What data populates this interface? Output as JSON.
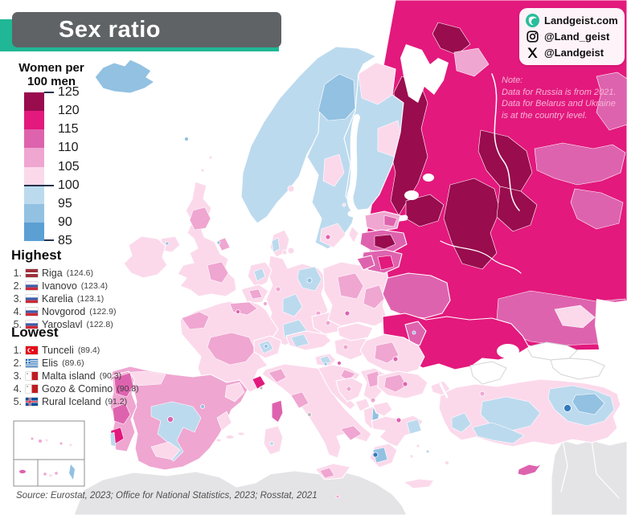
{
  "title": "Sex ratio",
  "legend": {
    "title_line1": "Women per",
    "title_line2": "100 men",
    "labels": [
      "125",
      "120",
      "115",
      "110",
      "105",
      "100",
      "95",
      "90",
      "85"
    ],
    "colors": [
      "#990C4E",
      "#E3197D",
      "#DE63AE",
      "#EFA6D1",
      "#FBD9EB",
      "#BCDAEE",
      "#92C1E2",
      "#5C9FD3"
    ]
  },
  "highest": {
    "heading": "Highest",
    "items": [
      {
        "rank": "1.",
        "flag": "latvia-flag",
        "name": "Riga",
        "value": "(124.6)"
      },
      {
        "rank": "2.",
        "flag": "russia-flag",
        "name": "Ivanovo",
        "value": "(123.4)"
      },
      {
        "rank": "3.",
        "flag": "russia-flag",
        "name": "Karelia",
        "value": "(123.1)"
      },
      {
        "rank": "4.",
        "flag": "russia-flag",
        "name": "Novgorod",
        "value": "(122.9)"
      },
      {
        "rank": "5.",
        "flag": "russia-flag",
        "name": "Yaroslavl",
        "value": "(122.8)"
      }
    ]
  },
  "lowest": {
    "heading": "Lowest",
    "items": [
      {
        "rank": "1.",
        "flag": "turkey-flag",
        "name": "Tunceli",
        "value": "(89.4)"
      },
      {
        "rank": "2.",
        "flag": "greece-flag",
        "name": "Elis",
        "value": "(89.6)"
      },
      {
        "rank": "3.",
        "flag": "malta-flag",
        "name": "Malta island",
        "value": "(90.3)"
      },
      {
        "rank": "4.",
        "flag": "malta-flag",
        "name": "Gozo & Comino",
        "value": "(90.8)"
      },
      {
        "rank": "5.",
        "flag": "iceland-flag",
        "name": "Rural Iceland",
        "value": "(91.2)"
      }
    ]
  },
  "social": {
    "items": [
      {
        "icon": "globe-icon",
        "label": "Landgeist.com"
      },
      {
        "icon": "instagram-icon",
        "label": "@Land_geist"
      },
      {
        "icon": "x-icon",
        "label": "@Landgeist"
      }
    ]
  },
  "note": {
    "lines": [
      "Note:",
      "Data for Russia is from 2021.",
      "Data for Belarus and Ukraine",
      "is at the country level."
    ]
  },
  "source": "Source: Eurostat, 2023; Office for National Statistics, 2023; Rosstat, 2021",
  "theme": {
    "accent_teal": "#1FB795",
    "title_gray": "#5F6366",
    "no_data_gray": "#E4E4E6",
    "marker_gray": "#BDBDBD",
    "deep_blue": "#3579C0",
    "sea": "#FFFFFF",
    "tick_color": "#25324B"
  },
  "map": {
    "region_fills": {
      "north-africa": "nodata",
      "middle-east": "nodata",
      "kazakhstan": "nodata",
      "russia": 1,
      "russia-murmansk": 0,
      "russia-kola-patch": 3,
      "russia-karelia": 0,
      "russia-novgorod": 0,
      "russia-central-a": 0,
      "russia-central-b": 0,
      "russia-central-c": 0,
      "russia-east-a": 2,
      "russia-east-b": 2,
      "russia-northeast": 2,
      "russia-south": 2,
      "russia-south-patch": 4,
      "russia-south-dot": 6,
      "white-sea": "sea",
      "lake-ladoga": "sea",
      "lake-onega": "sea",
      "caspian": "sea",
      "sea-azov": "sea",
      "crimea": "sea",
      "georgia": "sea",
      "azerbaijan": "sea",
      "norway": 5,
      "norway-dot": 4,
      "sweden": 5,
      "scandinavia-north": 6,
      "sweden-mid": 4,
      "sweden-south": 4,
      "sweden-south-dot": 2,
      "gotland": 4,
      "finland": 5,
      "finland-north": 4,
      "finland-mid": 4,
      "aland": 4,
      "denmark": 4,
      "denmark-blue": 5,
      "denmark-isle-a": 4,
      "denmark-isle-b": 4,
      "iceland": 6,
      "faroe": 6,
      "shetland": 4,
      "orkney": 4,
      "britain": 4,
      "scotland-patch": 3,
      "england-patch-a": 3,
      "england-patch-b": 3,
      "england-dot": 6,
      "n-ireland": 4,
      "n-ireland-dot": 6,
      "ireland": 4,
      "netherlands": 4,
      "netherlands-blue": 5,
      "belgium": 4,
      "belgium-patch": 3,
      "luxembourg": 3,
      "germany": 4,
      "de-east-blue": 5,
      "de-berlin-dot": 6,
      "de-center-blue": 5,
      "de-south-blue": 5,
      "de-dot-a": 3,
      "de-dot-b": 3,
      "czechia": 4,
      "czechia-dot": 3,
      "poland": 4,
      "poland-patch-a": 3,
      "poland-patch-b": 3,
      "poland-dot": 2,
      "kaliningrad": 2,
      "estonia": 3,
      "estonia-patch": 2,
      "latvia": 2,
      "riga": 0,
      "lithuania": 2,
      "lithuania-patch": 1,
      "belarus": 2,
      "ukraine": 1,
      "moldova": 2,
      "moldova-dot": 6,
      "romania": 4,
      "romania-patch": 3,
      "romania-dot": 2,
      "hungary": 4,
      "hungary-dot": 3,
      "slovakia": 4,
      "austria": 4,
      "austria-blue": 5,
      "switzerland": 4,
      "switzerland-blue": 5,
      "switzerland-dot": 6,
      "slovenia": 4,
      "slovenia-blue": 5,
      "slovenia-dot": 6,
      "slovenia-dot2": 2,
      "croatia": 4,
      "croatia-patch": 3,
      "bosnia": 4,
      "bosnia-dot": 3,
      "serbia": 4,
      "serbia-patch": 3,
      "montenegro": 4,
      "albania": 4,
      "albania-blue": 6,
      "n-macedonia": 4,
      "kosovo-dot": 3,
      "bulgaria": 4,
      "bulgaria-patch": 3,
      "bulgaria-dot": 2,
      "greece": 4,
      "greece-east-blue": 5,
      "thessaloniki-dot": 2,
      "peloponnese": 4,
      "peloponnese-blue": 6,
      "elis-dot": "deepblue",
      "crete": 4,
      "aegean-a": 4,
      "aegean-b": 5,
      "aegean-c": 4,
      "rhodes": 4,
      "italy": 4,
      "it-north": 3,
      "it-tuscany": 3,
      "it-south": 3,
      "rome-dot": "graydot",
      "sicily": 4,
      "sicily-patch": 3,
      "sardinia": 4,
      "sardinia-dot": 5,
      "corsica": 2,
      "malta-dot": 3,
      "france": 4,
      "fr-brittany": 3,
      "fr-north": 3,
      "fr-center": 3,
      "fr-paris-dot": 2,
      "fr-riviera": 1,
      "monaco-dot": "graydot",
      "spain": 3,
      "es-center-blue": 5,
      "es-north": 4,
      "es-madrid-dot": 2,
      "es-south": 4,
      "es-east": 4,
      "es-valencia": 4,
      "es-north-dot": 6,
      "balearic-a": 4,
      "balearic-b": 4,
      "balearic-c": 4,
      "portugal": 3,
      "pt-north": 2,
      "pt-mid": 2,
      "pt-lisbon": 1,
      "pt-coast-blue": 5,
      "turkey": 4,
      "tr-europe": 4,
      "tr-istanbul-dot": 3,
      "tr-central-blue": 5,
      "tr-south-blue": 5,
      "tr-east-blue": 5,
      "tr-east-blue2": 6,
      "tunceli-dot": "deepblue",
      "tr-west-blue": 5,
      "tr-dot": 3,
      "cyprus": 2,
      "azores-a": 3,
      "azores-b": 3,
      "azores-c": 4,
      "azores-d": 3,
      "azores-e": 4,
      "madeira": 2,
      "canary-a": 3,
      "canary-b": 4,
      "canary-c": 3,
      "canary-blue": 6
    }
  }
}
